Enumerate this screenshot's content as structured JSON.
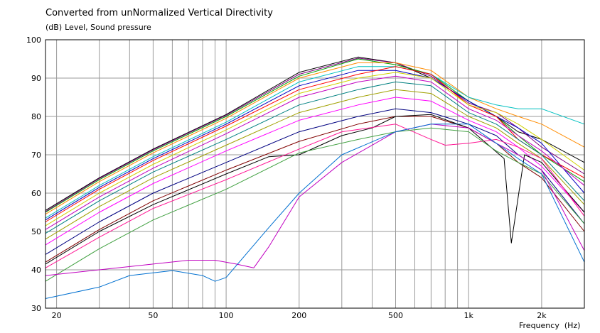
{
  "chart_data": {
    "type": "line",
    "title": "Converted from unNormalized Vertical Directivity",
    "ylabel_unit": "(dB)",
    "ylabel": "Level, Sound pressure",
    "xlabel": "Frequency",
    "xlabel_unit": "(Hz)",
    "xscale": "log",
    "xlim": [
      18,
      3000
    ],
    "ylim": [
      30,
      100
    ],
    "yticks": [
      30,
      40,
      50,
      60,
      70,
      80,
      90,
      100
    ],
    "xtick_labels": [
      {
        "value": 20,
        "label": "20"
      },
      {
        "value": 50,
        "label": "50"
      },
      {
        "value": 100,
        "label": "100"
      },
      {
        "value": 200,
        "label": "200"
      },
      {
        "value": 500,
        "label": "500"
      },
      {
        "value": 1000,
        "label": "1k"
      },
      {
        "value": 2000,
        "label": "2k"
      }
    ],
    "x_gridlines": [
      20,
      30,
      40,
      50,
      60,
      70,
      80,
      90,
      100,
      200,
      300,
      400,
      500,
      600,
      700,
      800,
      900,
      1000,
      2000,
      3000
    ],
    "grid": true,
    "legend": "none",
    "series": [
      {
        "color": "#000000",
        "points": [
          [
            18,
            55.5
          ],
          [
            30,
            64
          ],
          [
            50,
            71.5
          ],
          [
            100,
            80.5
          ],
          [
            200,
            91.5
          ],
          [
            350,
            95.5
          ],
          [
            500,
            94
          ],
          [
            700,
            90
          ],
          [
            1000,
            84
          ],
          [
            1300,
            80
          ],
          [
            1600,
            76
          ],
          [
            2000,
            74
          ],
          [
            3000,
            68
          ]
        ]
      },
      {
        "color": "#800080",
        "points": [
          [
            18,
            55.2
          ],
          [
            30,
            63.8
          ],
          [
            50,
            71.3
          ],
          [
            100,
            80.3
          ],
          [
            200,
            91
          ],
          [
            350,
            95.2
          ],
          [
            500,
            94
          ],
          [
            700,
            90.5
          ],
          [
            1000,
            83.5
          ],
          [
            1300,
            81
          ],
          [
            1600,
            77
          ],
          [
            2000,
            72
          ],
          [
            3000,
            65
          ]
        ]
      },
      {
        "color": "#00a000",
        "points": [
          [
            18,
            55
          ],
          [
            30,
            63.5
          ],
          [
            50,
            71
          ],
          [
            100,
            80
          ],
          [
            200,
            90.5
          ],
          [
            350,
            95
          ],
          [
            500,
            93.5
          ],
          [
            700,
            91
          ],
          [
            1000,
            84
          ],
          [
            1300,
            80
          ],
          [
            1600,
            75
          ],
          [
            2000,
            70
          ],
          [
            3000,
            63
          ]
        ]
      },
      {
        "color": "#ff8c00",
        "points": [
          [
            18,
            54.5
          ],
          [
            30,
            63
          ],
          [
            50,
            70.5
          ],
          [
            100,
            79.5
          ],
          [
            200,
            90
          ],
          [
            350,
            94
          ],
          [
            500,
            94
          ],
          [
            700,
            92
          ],
          [
            1000,
            85
          ],
          [
            1300,
            82
          ],
          [
            1600,
            80
          ],
          [
            2000,
            78
          ],
          [
            3000,
            72
          ]
        ]
      },
      {
        "color": "#00c0c0",
        "points": [
          [
            18,
            53.5
          ],
          [
            30,
            62
          ],
          [
            50,
            69.5
          ],
          [
            100,
            78.5
          ],
          [
            200,
            89
          ],
          [
            350,
            93
          ],
          [
            500,
            93
          ],
          [
            700,
            91
          ],
          [
            1000,
            85
          ],
          [
            1300,
            83
          ],
          [
            1600,
            82
          ],
          [
            2000,
            82
          ],
          [
            3000,
            78
          ]
        ]
      },
      {
        "color": "#0000c0",
        "points": [
          [
            18,
            53
          ],
          [
            30,
            61.5
          ],
          [
            50,
            69
          ],
          [
            100,
            78
          ],
          [
            200,
            88
          ],
          [
            350,
            92
          ],
          [
            500,
            92
          ],
          [
            700,
            90
          ],
          [
            1000,
            84
          ],
          [
            1300,
            80
          ],
          [
            1600,
            77
          ],
          [
            2000,
            73
          ],
          [
            3000,
            60
          ]
        ]
      },
      {
        "color": "#ff0000",
        "points": [
          [
            18,
            52.5
          ],
          [
            30,
            61
          ],
          [
            50,
            68.5
          ],
          [
            100,
            77.5
          ],
          [
            200,
            87
          ],
          [
            350,
            91
          ],
          [
            500,
            93
          ],
          [
            700,
            91
          ],
          [
            1000,
            83
          ],
          [
            1300,
            80
          ],
          [
            1600,
            74
          ],
          [
            2000,
            70
          ],
          [
            3000,
            64
          ]
        ]
      },
      {
        "color": "#d0d000",
        "points": [
          [
            18,
            51.5
          ],
          [
            30,
            60
          ],
          [
            50,
            67.5
          ],
          [
            100,
            76.5
          ],
          [
            200,
            86
          ],
          [
            350,
            90
          ],
          [
            500,
            91.5
          ],
          [
            700,
            90
          ],
          [
            1000,
            83
          ],
          [
            1300,
            81
          ],
          [
            1600,
            78
          ],
          [
            2000,
            74
          ],
          [
            3000,
            66
          ]
        ]
      },
      {
        "color": "#c000c0",
        "points": [
          [
            18,
            50.5
          ],
          [
            30,
            59
          ],
          [
            50,
            66.5
          ],
          [
            100,
            75.5
          ],
          [
            200,
            85
          ],
          [
            350,
            89
          ],
          [
            500,
            90.5
          ],
          [
            700,
            89
          ],
          [
            1000,
            82
          ],
          [
            1300,
            79
          ],
          [
            1600,
            75
          ],
          [
            2000,
            71
          ],
          [
            3000,
            62
          ]
        ]
      },
      {
        "color": "#008080",
        "points": [
          [
            18,
            49.5
          ],
          [
            30,
            58
          ],
          [
            50,
            65.5
          ],
          [
            100,
            74
          ],
          [
            200,
            83
          ],
          [
            350,
            87
          ],
          [
            500,
            89
          ],
          [
            700,
            88
          ],
          [
            1000,
            81
          ],
          [
            1300,
            78
          ],
          [
            1600,
            74
          ],
          [
            2000,
            70
          ],
          [
            3000,
            58
          ]
        ]
      },
      {
        "color": "#a0a000",
        "points": [
          [
            18,
            48
          ],
          [
            30,
            56.5
          ],
          [
            50,
            64
          ],
          [
            100,
            72.5
          ],
          [
            200,
            81
          ],
          [
            350,
            85
          ],
          [
            500,
            87
          ],
          [
            700,
            86
          ],
          [
            1000,
            80
          ],
          [
            1300,
            77
          ],
          [
            1600,
            73
          ],
          [
            2000,
            69
          ],
          [
            3000,
            57
          ]
        ]
      },
      {
        "color": "#ff00ff",
        "points": [
          [
            18,
            46.5
          ],
          [
            30,
            55
          ],
          [
            50,
            62.5
          ],
          [
            100,
            71
          ],
          [
            200,
            79
          ],
          [
            350,
            83
          ],
          [
            500,
            85
          ],
          [
            700,
            84
          ],
          [
            1000,
            79
          ],
          [
            1300,
            76
          ],
          [
            1600,
            72
          ],
          [
            2000,
            67
          ],
          [
            3000,
            55
          ]
        ]
      },
      {
        "color": "#000080",
        "points": [
          [
            18,
            44
          ],
          [
            30,
            52.5
          ],
          [
            50,
            60
          ],
          [
            100,
            68
          ],
          [
            200,
            76
          ],
          [
            350,
            80
          ],
          [
            500,
            82
          ],
          [
            700,
            81
          ],
          [
            1000,
            78
          ],
          [
            1300,
            75
          ],
          [
            1600,
            70
          ],
          [
            2000,
            66
          ],
          [
            3000,
            52
          ]
        ]
      },
      {
        "color": "#800000",
        "points": [
          [
            18,
            42
          ],
          [
            30,
            50.5
          ],
          [
            50,
            58
          ],
          [
            100,
            66
          ],
          [
            200,
            73.5
          ],
          [
            350,
            78
          ],
          [
            500,
            80
          ],
          [
            700,
            80
          ],
          [
            1000,
            77
          ],
          [
            1300,
            73
          ],
          [
            1600,
            68
          ],
          [
            2000,
            64
          ],
          [
            3000,
            50
          ]
        ]
      },
      {
        "color": "#000000",
        "points": [
          [
            18,
            41.5
          ],
          [
            30,
            50
          ],
          [
            50,
            57
          ],
          [
            100,
            65
          ],
          [
            150,
            69.5
          ],
          [
            200,
            70
          ],
          [
            300,
            75
          ],
          [
            400,
            77
          ],
          [
            500,
            80
          ],
          [
            700,
            80.5
          ],
          [
            1000,
            77
          ],
          [
            1400,
            69
          ],
          [
            1500,
            47
          ],
          [
            1700,
            70
          ],
          [
            2000,
            68
          ],
          [
            3000,
            55
          ]
        ]
      },
      {
        "color": "#ff1493",
        "points": [
          [
            18,
            40.5
          ],
          [
            30,
            48.5
          ],
          [
            50,
            56
          ],
          [
            100,
            63.5
          ],
          [
            200,
            71.5
          ],
          [
            300,
            76
          ],
          [
            500,
            78
          ],
          [
            700,
            74
          ],
          [
            800,
            72.5
          ],
          [
            1000,
            73
          ],
          [
            1300,
            74
          ],
          [
            1600,
            72
          ],
          [
            2000,
            69
          ],
          [
            3000,
            54
          ]
        ]
      },
      {
        "color": "#40a040",
        "points": [
          [
            18,
            37
          ],
          [
            30,
            45.5
          ],
          [
            50,
            53
          ],
          [
            100,
            61
          ],
          [
            200,
            70.5
          ],
          [
            350,
            74
          ],
          [
            500,
            76
          ],
          [
            700,
            77
          ],
          [
            1000,
            76
          ],
          [
            1300,
            71
          ],
          [
            1600,
            68
          ],
          [
            2000,
            65
          ],
          [
            3000,
            52
          ]
        ]
      },
      {
        "color": "#c000c0",
        "points": [
          [
            18,
            38.5
          ],
          [
            30,
            40
          ],
          [
            50,
            41.5
          ],
          [
            70,
            42.5
          ],
          [
            90,
            42.5
          ],
          [
            110,
            41.5
          ],
          [
            130,
            40.5
          ],
          [
            150,
            46
          ],
          [
            200,
            59
          ],
          [
            300,
            68
          ],
          [
            500,
            76
          ],
          [
            700,
            78
          ],
          [
            1000,
            77
          ],
          [
            1300,
            73
          ],
          [
            1600,
            70
          ],
          [
            2000,
            66
          ],
          [
            3000,
            45
          ]
        ]
      },
      {
        "color": "#0070d0",
        "points": [
          [
            18,
            32.5
          ],
          [
            30,
            35.5
          ],
          [
            40,
            38.5
          ],
          [
            60,
            39.8
          ],
          [
            80,
            38.5
          ],
          [
            90,
            37
          ],
          [
            100,
            38
          ],
          [
            150,
            51
          ],
          [
            200,
            60
          ],
          [
            300,
            70
          ],
          [
            500,
            76
          ],
          [
            700,
            78
          ],
          [
            1000,
            78
          ],
          [
            1300,
            73
          ],
          [
            1600,
            69
          ],
          [
            2000,
            65
          ],
          [
            3000,
            42
          ]
        ]
      }
    ]
  }
}
